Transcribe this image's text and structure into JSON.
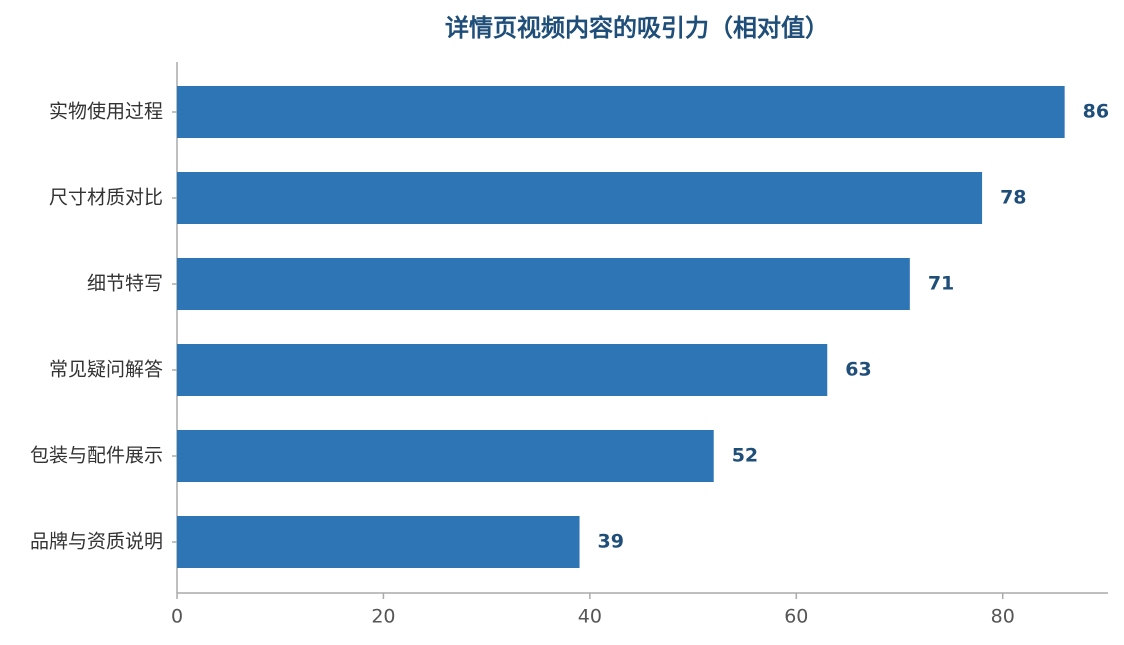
{
  "chart_data": {
    "type": "bar",
    "orientation": "horizontal",
    "title": "详情页视频内容的吸引力（相对值）",
    "categories": [
      "实物使用过程",
      "尺寸材质对比",
      "细节特写",
      "常见疑问解答",
      "包装与配件展示",
      "品牌与资质说明"
    ],
    "values": [
      86,
      78,
      71,
      63,
      52,
      39
    ],
    "color": "#2e75b6",
    "xlim": [
      0,
      90.2
    ],
    "xticks": [
      0,
      20,
      40,
      60,
      80
    ],
    "grid": false
  }
}
